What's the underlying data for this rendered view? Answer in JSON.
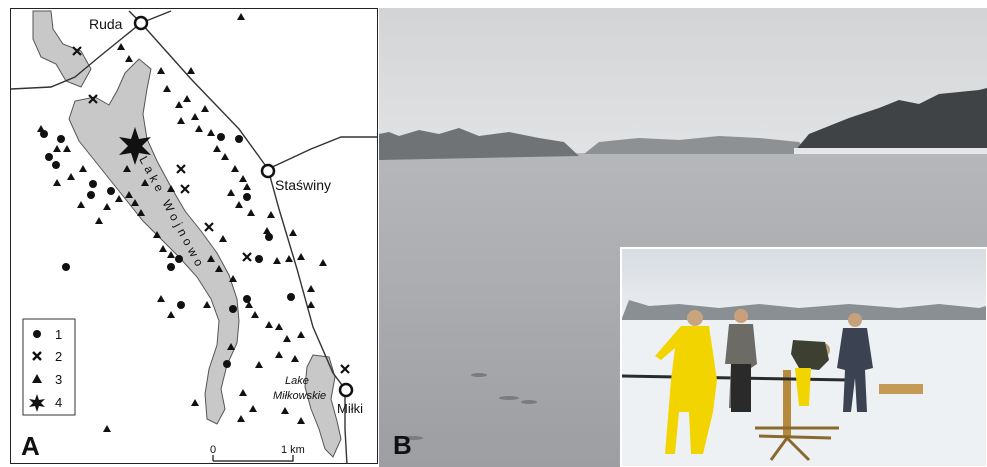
{
  "panels": {
    "a_label": "A",
    "b_label": "B"
  },
  "map": {
    "towns": [
      {
        "name": "Ruda"
      },
      {
        "name": "Staświny"
      },
      {
        "name": "Miłki"
      }
    ],
    "lakes": {
      "wojnowo": "Lake Wojnowo",
      "milkowskie_line1": "Lake",
      "milkowskie_line2": "Miłkowskie"
    },
    "legend": [
      {
        "symbol": "circle",
        "label": "1"
      },
      {
        "symbol": "cross",
        "label": "2"
      },
      {
        "symbol": "triangle",
        "label": "3"
      },
      {
        "symbol": "star",
        "label": "4"
      }
    ],
    "scale": {
      "start": "0",
      "end": "1 km"
    }
  },
  "colors": {
    "lake": "#c8c8c8",
    "road": "#333333",
    "ice": "#a9abae",
    "sky": "#d7d9db",
    "snow": "#eef1f4",
    "jacket_yellow": "#f2d400"
  },
  "photo": {
    "main_subject": "frozen-lake-surface",
    "inset_subject": "ice-coring-crew"
  }
}
